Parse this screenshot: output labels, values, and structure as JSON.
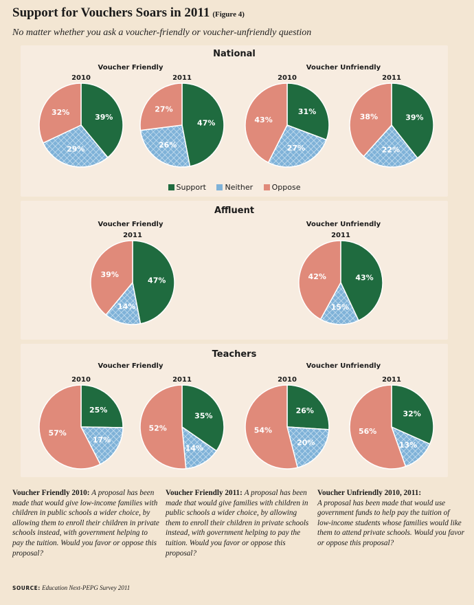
{
  "header": {
    "title": "Support for Vouchers Soars in 2011",
    "figure_label": "(Figure 4)",
    "subtitle": "No matter whether you ask a voucher-friendly or voucher-unfriendly question"
  },
  "colors": {
    "support": "#1f6b3f",
    "neither": "#7fb2d8",
    "oppose": "#e08a7a"
  },
  "legend": [
    "Support",
    "Neither",
    "Oppose"
  ],
  "sections": {
    "national": {
      "title": "National",
      "friendly_label": "Voucher Friendly",
      "unfriendly_label": "Voucher Unfriendly"
    },
    "affluent": {
      "title": "Affluent",
      "friendly_label": "Voucher Friendly",
      "unfriendly_label": "Voucher Unfriendly"
    },
    "teachers": {
      "title": "Teachers",
      "friendly_label": "Voucher Friendly",
      "unfriendly_label": "Voucher Unfriendly"
    }
  },
  "chart_data": [
    {
      "type": "pie",
      "group": "National",
      "question": "Voucher Friendly",
      "year": "2010",
      "categories": [
        "Support",
        "Neither",
        "Oppose"
      ],
      "values": [
        39,
        29,
        32
      ],
      "labels": [
        "39%",
        "29%",
        "32%"
      ]
    },
    {
      "type": "pie",
      "group": "National",
      "question": "Voucher Friendly",
      "year": "2011",
      "categories": [
        "Support",
        "Neither",
        "Oppose"
      ],
      "values": [
        47,
        26,
        27
      ],
      "labels": [
        "47%",
        "26%",
        "27%"
      ]
    },
    {
      "type": "pie",
      "group": "National",
      "question": "Voucher Unfriendly",
      "year": "2010",
      "categories": [
        "Support",
        "Neither",
        "Oppose"
      ],
      "values": [
        31,
        27,
        43
      ],
      "labels": [
        "31%",
        "27%",
        "43%"
      ]
    },
    {
      "type": "pie",
      "group": "National",
      "question": "Voucher Unfriendly",
      "year": "2011",
      "categories": [
        "Support",
        "Neither",
        "Oppose"
      ],
      "values": [
        39,
        22,
        38
      ],
      "labels": [
        "39%",
        "22%",
        "38%"
      ]
    },
    {
      "type": "pie",
      "group": "Affluent",
      "question": "Voucher Friendly",
      "year": "2011",
      "categories": [
        "Support",
        "Neither",
        "Oppose"
      ],
      "values": [
        47,
        14,
        39
      ],
      "labels": [
        "47%",
        "14%",
        "39%"
      ]
    },
    {
      "type": "pie",
      "group": "Affluent",
      "question": "Voucher Unfriendly",
      "year": "2011",
      "categories": [
        "Support",
        "Neither",
        "Oppose"
      ],
      "values": [
        43,
        15,
        42
      ],
      "labels": [
        "43%",
        "15%",
        "42%"
      ]
    },
    {
      "type": "pie",
      "group": "Teachers",
      "question": "Voucher Friendly",
      "year": "2010",
      "categories": [
        "Support",
        "Neither",
        "Oppose"
      ],
      "values": [
        25,
        17,
        57
      ],
      "labels": [
        "25%",
        "17%",
        "57%"
      ]
    },
    {
      "type": "pie",
      "group": "Teachers",
      "question": "Voucher Friendly",
      "year": "2011",
      "categories": [
        "Support",
        "Neither",
        "Oppose"
      ],
      "values": [
        35,
        14,
        52
      ],
      "labels": [
        "35%",
        "14%",
        "52%"
      ]
    },
    {
      "type": "pie",
      "group": "Teachers",
      "question": "Voucher Unfriendly",
      "year": "2010",
      "categories": [
        "Support",
        "Neither",
        "Oppose"
      ],
      "values": [
        26,
        20,
        54
      ],
      "labels": [
        "26%",
        "20%",
        "54%"
      ]
    },
    {
      "type": "pie",
      "group": "Teachers",
      "question": "Voucher Unfriendly",
      "year": "2011",
      "categories": [
        "Support",
        "Neither",
        "Oppose"
      ],
      "values": [
        32,
        13,
        56
      ],
      "labels": [
        "32%",
        "13%",
        "56%"
      ]
    }
  ],
  "notes": [
    {
      "label": "Voucher Friendly 2010:",
      "text": "A proposal has been made that would give low-income families with children in public schools a wider choice, by allowing them to enroll their children in private schools instead, with government helping to pay the tuition. Would you favor or oppose this proposal?"
    },
    {
      "label": "Voucher Friendly 2011:",
      "text": "A proposal has been made that would give families with children in public schools a wider choice, by allowing them to enroll their children in private schools instead, with government helping to pay the tuition. Would you favor or oppose this proposal?"
    },
    {
      "label": "Voucher Unfriendly 2010, 2011:",
      "text": "A proposal has been made that would use government funds to help pay the tuition of low-income students whose families would like them to attend private schools. Would you favor or oppose this proposal?"
    }
  ],
  "source": {
    "label": "SOURCE:",
    "text": "Education Next-PEPG Survey 2011"
  }
}
